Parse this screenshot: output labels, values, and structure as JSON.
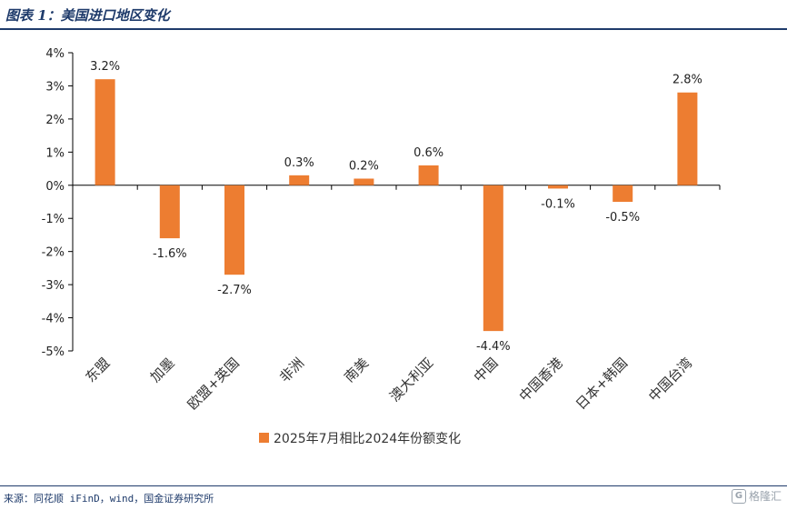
{
  "header": {
    "title": "图表 1：美国进口地区变化"
  },
  "footer": {
    "source": "来源：同花顺 iFinD，wind，国金证券研究所",
    "watermark": "格隆汇"
  },
  "colors": {
    "bar": "#ed7d31",
    "axis": "#000000",
    "title": "#1f3b6b"
  },
  "chart_data": {
    "type": "bar",
    "categories": [
      "东盟",
      "加墨",
      "欧盟+英国",
      "非洲",
      "南美",
      "澳大利亚",
      "中国",
      "中国香港",
      "日本+韩国",
      "中国台湾"
    ],
    "series": [
      {
        "name": "2025年7月相比2024年份额变化",
        "values": [
          3.2,
          -1.6,
          -2.7,
          0.3,
          0.2,
          0.6,
          -4.4,
          -0.1,
          -0.5,
          2.8
        ],
        "labels": [
          "3.2%",
          "-1.6%",
          "-2.7%",
          "0.3%",
          "0.2%",
          "0.6%",
          "-4.4%",
          "-0.1%",
          "-0.5%",
          "2.8%"
        ]
      }
    ],
    "ylim": [
      -5,
      4
    ],
    "yticks": [
      4,
      3,
      2,
      1,
      0,
      -1,
      -2,
      -3,
      -4,
      -5
    ],
    "ytick_labels": [
      "4%",
      "3%",
      "2%",
      "1%",
      "0%",
      "-1%",
      "-2%",
      "-3%",
      "-4%",
      "-5%"
    ],
    "legend_position": "bottom",
    "grid": false
  }
}
